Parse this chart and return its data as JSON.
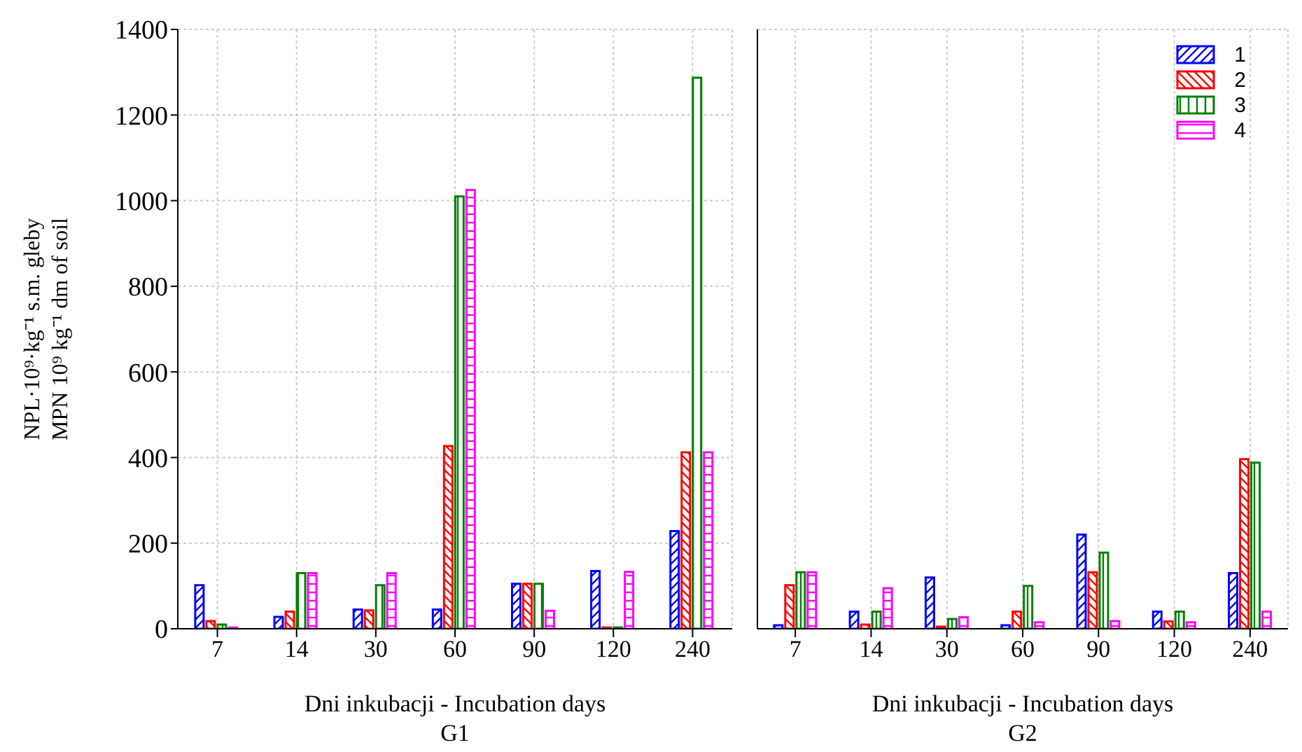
{
  "chart_data": [
    {
      "type": "bar",
      "title": "G1",
      "xlabel": "Dni inkubacji - Incubation days",
      "ylabel": "NPL·10⁹·kg⁻¹ s.m. gleby\nMPN 10⁹ kg⁻¹ dm of soil",
      "categories": [
        "7",
        "14",
        "30",
        "60",
        "90",
        "120",
        "240"
      ],
      "series": [
        {
          "color": "#0000ff",
          "values": [
            102,
            28,
            45,
            45,
            105,
            135,
            228
          ]
        },
        {
          "color": "#ff0000",
          "values": [
            18,
            40,
            43,
            427,
            105,
            3,
            412
          ]
        },
        {
          "color": "#008000",
          "values": [
            10,
            130,
            102,
            1010,
            105,
            3,
            1287
          ]
        },
        {
          "color": "#ff00ff",
          "values": [
            3,
            130,
            130,
            1025,
            42,
            133,
            412
          ]
        }
      ],
      "ylim": [
        0,
        1400
      ],
      "yticks": [
        0,
        200,
        400,
        600,
        800,
        1000,
        1200,
        1400
      ],
      "grid": true
    },
    {
      "type": "bar",
      "title": "G2",
      "xlabel": "Dni inkubacji - Incubation days",
      "categories": [
        "7",
        "14",
        "30",
        "60",
        "90",
        "120",
        "240"
      ],
      "series": [
        {
          "name": "1",
          "color": "#0000ff",
          "values": [
            8,
            40,
            120,
            8,
            220,
            40,
            130
          ]
        },
        {
          "name": "2",
          "color": "#ff0000",
          "values": [
            102,
            10,
            5,
            40,
            132,
            17,
            396
          ]
        },
        {
          "name": "3",
          "color": "#008000",
          "values": [
            132,
            40,
            23,
            100,
            178,
            40,
            388
          ]
        },
        {
          "name": "4",
          "color": "#ff00ff",
          "values": [
            132,
            95,
            27,
            15,
            18,
            15,
            40
          ]
        }
      ],
      "ylim": [
        0,
        1400
      ],
      "yticks": [
        0,
        200,
        400,
        600,
        800,
        1000,
        1200,
        1400
      ],
      "grid": true,
      "tick_labels": "x",
      "legend": "top right"
    }
  ]
}
